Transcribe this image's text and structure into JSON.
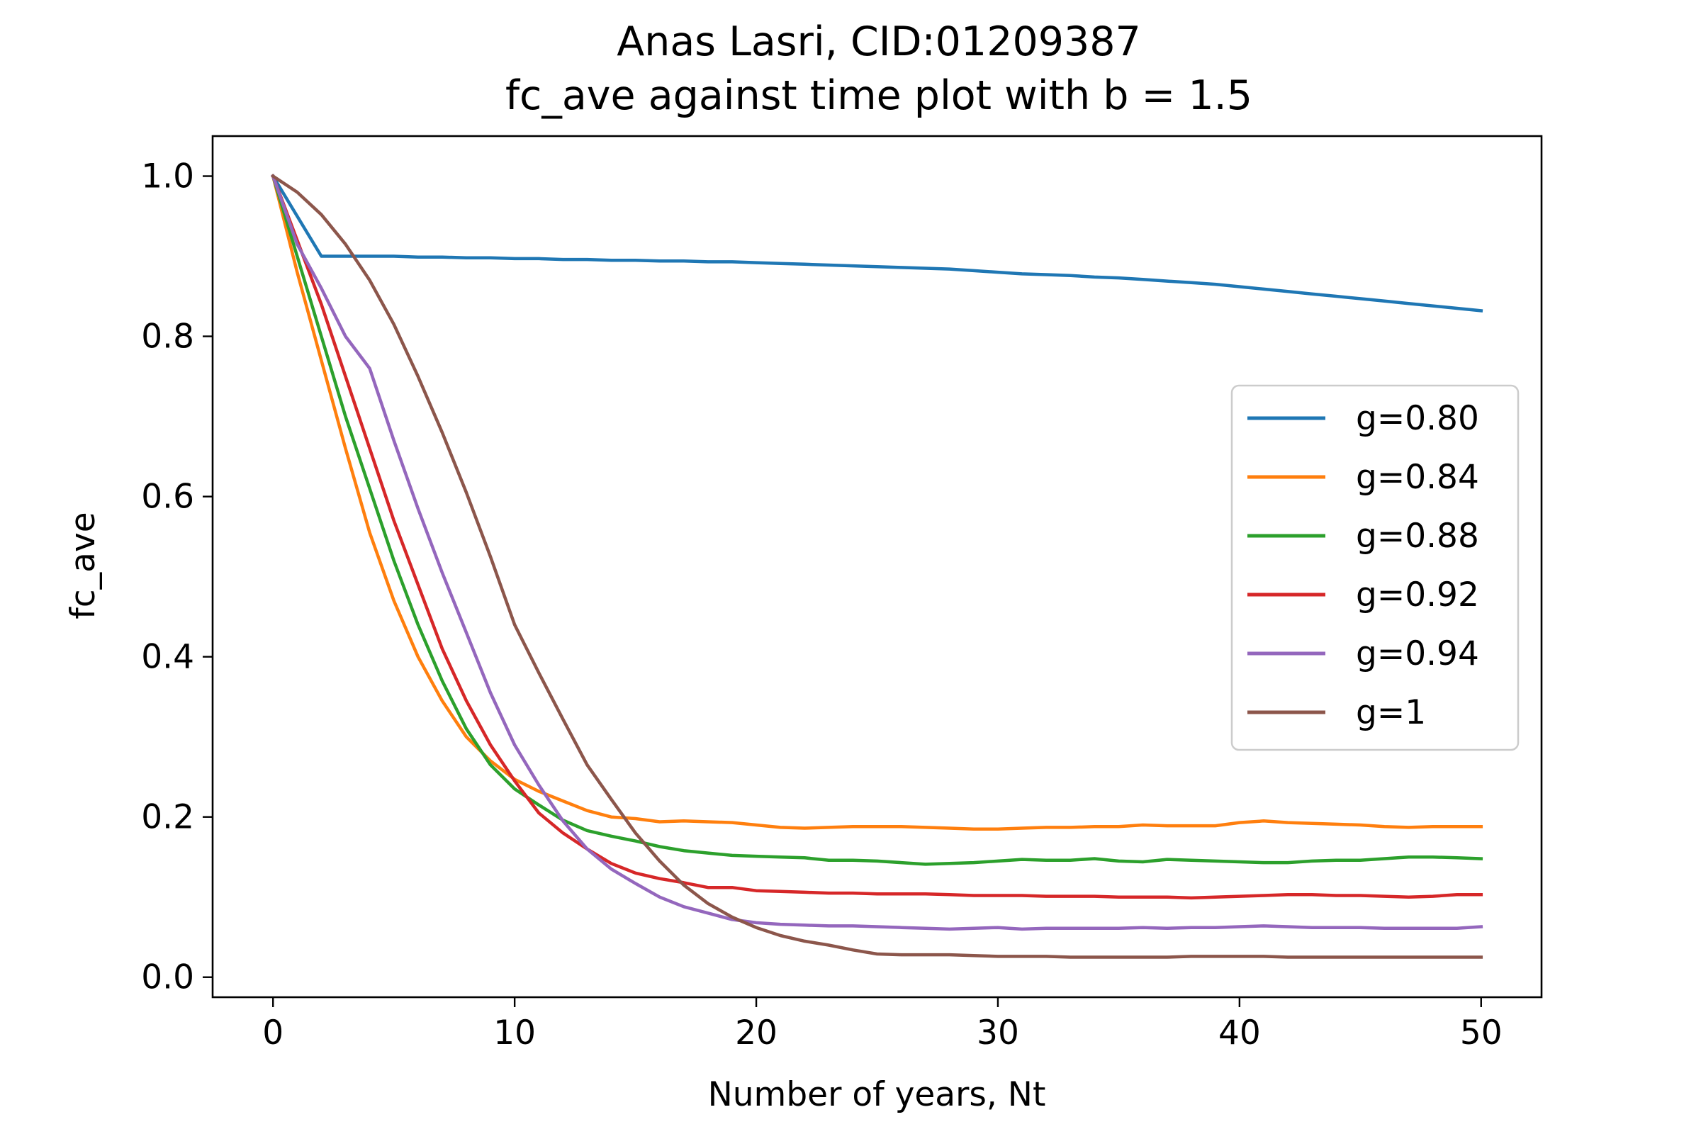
{
  "chart_data": {
    "type": "line",
    "title": "Anas Lasri, CID:01209387",
    "subtitle": "fc_ave against time plot with b = 1.5",
    "xlabel": "Number of years, Nt",
    "ylabel": "fc_ave",
    "xlim": [
      -2.5,
      52.5
    ],
    "ylim": [
      -0.025,
      1.05
    ],
    "xticks": [
      0,
      10,
      20,
      30,
      40,
      50
    ],
    "xtick_labels": [
      "0",
      "10",
      "20",
      "30",
      "40",
      "50"
    ],
    "yticks": [
      0.0,
      0.2,
      0.4,
      0.6,
      0.8,
      1.0
    ],
    "ytick_labels": [
      "0.0",
      "0.2",
      "0.4",
      "0.6",
      "0.8",
      "1.0"
    ],
    "grid": false,
    "legend_position": "center-right",
    "x": [
      0,
      1,
      2,
      3,
      4,
      5,
      6,
      7,
      8,
      9,
      10,
      11,
      12,
      13,
      14,
      15,
      16,
      17,
      18,
      19,
      20,
      21,
      22,
      23,
      24,
      25,
      26,
      27,
      28,
      29,
      30,
      31,
      32,
      33,
      34,
      35,
      36,
      37,
      38,
      39,
      40,
      41,
      42,
      43,
      44,
      45,
      46,
      47,
      48,
      49,
      50
    ],
    "series": [
      {
        "name": "g=0.80",
        "color": "#1f77b4",
        "values": [
          1.0,
          0.95,
          0.9,
          0.9,
          0.9,
          0.9,
          0.899,
          0.899,
          0.898,
          0.898,
          0.897,
          0.897,
          0.896,
          0.896,
          0.895,
          0.895,
          0.894,
          0.894,
          0.893,
          0.893,
          0.892,
          0.891,
          0.89,
          0.889,
          0.888,
          0.887,
          0.886,
          0.885,
          0.884,
          0.882,
          0.88,
          0.878,
          0.877,
          0.876,
          0.874,
          0.873,
          0.871,
          0.869,
          0.867,
          0.865,
          0.862,
          0.859,
          0.856,
          0.853,
          0.85,
          0.847,
          0.844,
          0.841,
          0.838,
          0.835,
          0.832
        ]
      },
      {
        "name": "g=0.84",
        "color": "#ff7f0e",
        "values": [
          1.0,
          0.88,
          0.77,
          0.66,
          0.555,
          0.47,
          0.4,
          0.345,
          0.3,
          0.27,
          0.247,
          0.232,
          0.22,
          0.208,
          0.2,
          0.198,
          0.194,
          0.195,
          0.194,
          0.193,
          0.19,
          0.187,
          0.186,
          0.187,
          0.188,
          0.188,
          0.188,
          0.187,
          0.186,
          0.185,
          0.185,
          0.186,
          0.187,
          0.187,
          0.188,
          0.188,
          0.19,
          0.189,
          0.189,
          0.189,
          0.193,
          0.195,
          0.193,
          0.192,
          0.191,
          0.19,
          0.188,
          0.187,
          0.188,
          0.188,
          0.188
        ]
      },
      {
        "name": "g=0.88",
        "color": "#2ca02c",
        "values": [
          1.0,
          0.9,
          0.8,
          0.7,
          0.61,
          0.52,
          0.44,
          0.37,
          0.31,
          0.265,
          0.235,
          0.215,
          0.196,
          0.183,
          0.176,
          0.17,
          0.163,
          0.158,
          0.155,
          0.152,
          0.151,
          0.15,
          0.149,
          0.146,
          0.146,
          0.145,
          0.143,
          0.141,
          0.142,
          0.143,
          0.145,
          0.147,
          0.146,
          0.146,
          0.148,
          0.145,
          0.144,
          0.147,
          0.146,
          0.145,
          0.144,
          0.143,
          0.143,
          0.145,
          0.146,
          0.146,
          0.148,
          0.15,
          0.15,
          0.149,
          0.148
        ]
      },
      {
        "name": "g=0.92",
        "color": "#d62728",
        "values": [
          1.0,
          0.92,
          0.84,
          0.75,
          0.66,
          0.57,
          0.49,
          0.41,
          0.345,
          0.29,
          0.245,
          0.205,
          0.18,
          0.16,
          0.142,
          0.13,
          0.123,
          0.118,
          0.112,
          0.112,
          0.108,
          0.107,
          0.106,
          0.105,
          0.105,
          0.104,
          0.104,
          0.104,
          0.103,
          0.102,
          0.102,
          0.102,
          0.101,
          0.101,
          0.101,
          0.1,
          0.1,
          0.1,
          0.099,
          0.1,
          0.101,
          0.102,
          0.103,
          0.103,
          0.102,
          0.102,
          0.101,
          0.1,
          0.101,
          0.103,
          0.103
        ]
      },
      {
        "name": "g=0.94",
        "color": "#9467bd",
        "values": [
          1.0,
          0.915,
          0.86,
          0.8,
          0.76,
          0.67,
          0.585,
          0.505,
          0.43,
          0.355,
          0.29,
          0.24,
          0.195,
          0.16,
          0.135,
          0.117,
          0.1,
          0.088,
          0.08,
          0.072,
          0.068,
          0.066,
          0.065,
          0.064,
          0.064,
          0.063,
          0.062,
          0.061,
          0.06,
          0.061,
          0.062,
          0.06,
          0.061,
          0.061,
          0.061,
          0.061,
          0.062,
          0.061,
          0.062,
          0.062,
          0.063,
          0.064,
          0.063,
          0.062,
          0.062,
          0.062,
          0.061,
          0.061,
          0.061,
          0.061,
          0.063
        ]
      },
      {
        "name": "g=1",
        "color": "#8c564b",
        "values": [
          1.0,
          0.98,
          0.952,
          0.915,
          0.87,
          0.815,
          0.75,
          0.68,
          0.605,
          0.525,
          0.44,
          0.38,
          0.322,
          0.265,
          0.222,
          0.18,
          0.145,
          0.115,
          0.092,
          0.075,
          0.062,
          0.052,
          0.045,
          0.04,
          0.034,
          0.029,
          0.028,
          0.028,
          0.028,
          0.027,
          0.026,
          0.026,
          0.026,
          0.025,
          0.025,
          0.025,
          0.025,
          0.025,
          0.026,
          0.026,
          0.026,
          0.026,
          0.025,
          0.025,
          0.025,
          0.025,
          0.025,
          0.025,
          0.025,
          0.025,
          0.025
        ]
      }
    ]
  }
}
